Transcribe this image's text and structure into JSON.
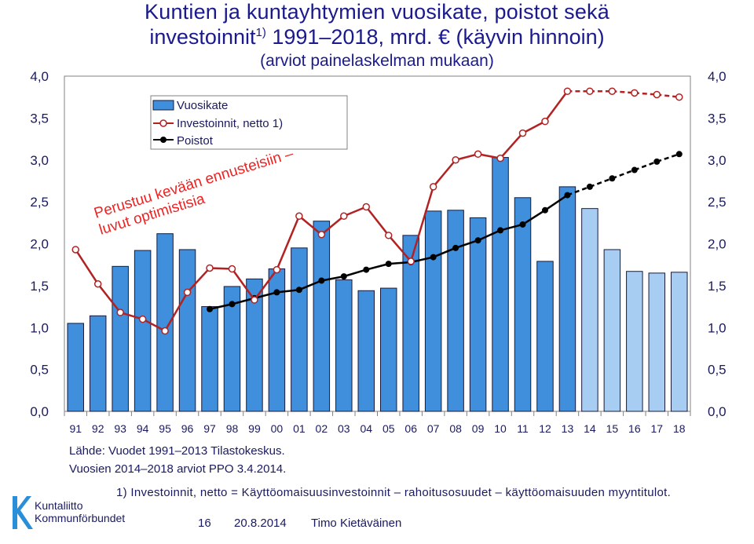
{
  "chart_data": {
    "type": "bar",
    "title_line1": "Kuntien ja kuntayhtymien vuosikate, poistot sekä",
    "title_line2_pre": "investoinnit",
    "title_line2_sup": "1)",
    "title_line2_post": " 1991–2018, mrd. € (käyvin hinnoin)",
    "subtitle": "(arviot painelaskelman mukaan)",
    "categories": [
      "91",
      "92",
      "93",
      "94",
      "95",
      "96",
      "97",
      "98",
      "99",
      "00",
      "01",
      "02",
      "03",
      "04",
      "05",
      "06",
      "07",
      "08",
      "09",
      "10",
      "11",
      "12",
      "13",
      "14",
      "15",
      "16",
      "17",
      "18"
    ],
    "ylim": [
      0,
      4.0
    ],
    "yticks": [
      "0,0",
      "0,5",
      "1,0",
      "1,5",
      "2,0",
      "2,5",
      "3,0",
      "3,5",
      "4,0"
    ],
    "ytick_values": [
      0,
      0.5,
      1.0,
      1.5,
      2.0,
      2.5,
      3.0,
      3.5,
      4.0
    ],
    "grid": false,
    "legend_position": "top-left",
    "series": [
      {
        "name": "Vuosikate",
        "kind": "bar",
        "color": "#3f8fdc",
        "forecast_color": "#a8cdf2",
        "values": [
          1.05,
          1.14,
          1.73,
          1.92,
          2.12,
          1.93,
          1.25,
          1.49,
          1.58,
          1.7,
          1.95,
          2.27,
          1.57,
          1.44,
          1.47,
          2.1,
          2.39,
          2.4,
          2.31,
          3.03,
          2.55,
          1.79,
          2.68,
          2.42,
          1.93,
          1.67,
          1.65,
          1.66
        ],
        "forecast_from_index": 23
      },
      {
        "name": "Investoinnit, netto 1)",
        "kind": "line",
        "color": "#b22222",
        "values": [
          1.93,
          1.52,
          1.18,
          1.1,
          0.96,
          1.42,
          1.71,
          1.7,
          1.33,
          1.69,
          2.33,
          2.11,
          2.33,
          2.44,
          2.1,
          1.79,
          2.68,
          3.0,
          3.07,
          3.02,
          3.32,
          3.46,
          3.82,
          3.82,
          3.82,
          3.8,
          3.78,
          3.75
        ],
        "forecast_from_index": 22
      },
      {
        "name": "Poistot",
        "kind": "line",
        "color": "#000000",
        "values": [
          null,
          null,
          null,
          null,
          null,
          null,
          1.22,
          1.28,
          1.35,
          1.42,
          1.45,
          1.56,
          1.61,
          1.69,
          1.76,
          1.78,
          1.84,
          1.95,
          2.04,
          2.16,
          2.23,
          2.4,
          2.58,
          2.68,
          2.78,
          2.88,
          2.98,
          3.07
        ],
        "forecast_from_index": 22
      }
    ],
    "annotation": "Perustuu kevään ennusteisiin – luvut optimistisia"
  },
  "source_line1": "Lähde: Vuodet 1991–2013 Tilastokeskus.",
  "source_line2": "Vuosien 2014–2018 arviot PPO 3.4.2014.",
  "footnote": "1) Investoinnit, netto = Käyttöomaisuusinvestoinnit – rahoitusosuudet – käyttöomaisuuden myyntitulot.",
  "footer": {
    "page": "16",
    "date": "20.8.2014",
    "author": "Timo Kietäväinen"
  },
  "logo": {
    "line1": "Kuntaliitto",
    "line2": "Kommunförbundet",
    "icon": "kuntaliitto-logo-icon"
  },
  "colors": {
    "bar": "#3f8fdc",
    "bar_forecast": "#a8cdf2",
    "invest": "#b22222",
    "poistot": "#000000",
    "annotation": "#ee2222"
  }
}
